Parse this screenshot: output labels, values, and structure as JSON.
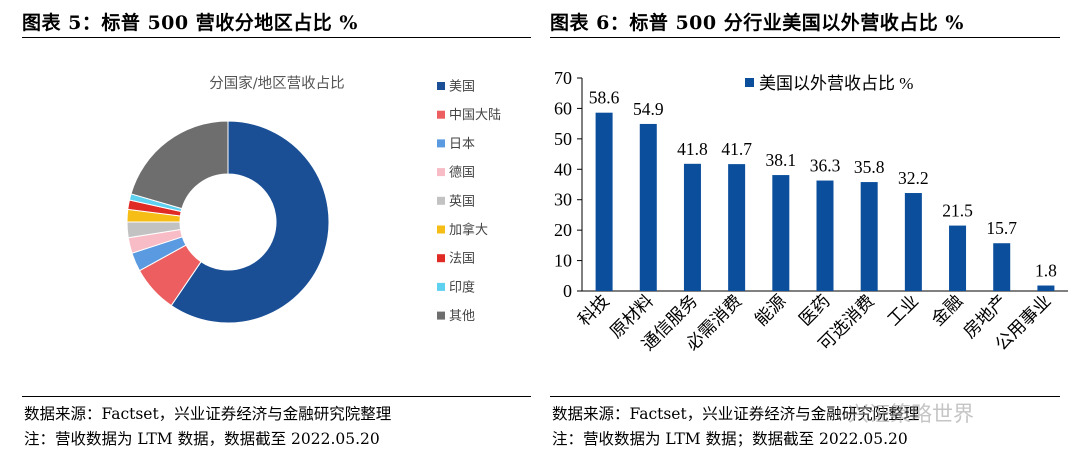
{
  "left_panel": {
    "title": "图表 5：标普 500 营收分地区占比 %",
    "source": "数据来源：Factset，兴业证券经济与金融研究院整理",
    "note": "注：营收数据为 LTM 数据，数据截至 2022.05.20"
  },
  "right_panel": {
    "title": "图表 6：标普 500 分行业美国以外营收占比 %",
    "source": "数据来源：Factset，兴业证券经济与金融研究院整理",
    "note": "注：营收数据为 LTM 数据；数据截至 2022.05.20"
  },
  "watermark": "兴证策略世界",
  "chart_data": [
    {
      "type": "pie",
      "donut": true,
      "title": "分国家/地区营收占比",
      "legend_position": "right",
      "categories": [
        "美国",
        "中国大陆",
        "日本",
        "德国",
        "英国",
        "加拿大",
        "法国",
        "印度",
        "其他"
      ],
      "values": [
        59.5,
        7.5,
        3.0,
        2.5,
        2.5,
        2.0,
        1.5,
        1.0,
        20.5
      ],
      "colors": [
        "#1a4f96",
        "#ec5e5f",
        "#5a9ae0",
        "#f7bcc5",
        "#c2c2c2",
        "#f6bd16",
        "#e02b25",
        "#5ed0f0",
        "#6e6e6e"
      ]
    },
    {
      "type": "bar",
      "title": "",
      "categories": [
        "科技",
        "原材料",
        "通信服务",
        "必需消费",
        "能源",
        "医药",
        "可选消费",
        "工业",
        "金融",
        "房地产",
        "公用事业"
      ],
      "series": [
        {
          "name": "美国以外营收占比 %",
          "values": [
            58.6,
            54.9,
            41.8,
            41.7,
            38.1,
            36.3,
            35.8,
            32.2,
            21.5,
            15.7,
            1.8
          ],
          "color": "#0b4f9c"
        }
      ],
      "ylim": [
        0,
        70
      ],
      "yticks": [
        0,
        10,
        20,
        30,
        40,
        50,
        60,
        70
      ],
      "grid": false,
      "legend_position": "top-right",
      "data_labels": true
    }
  ]
}
